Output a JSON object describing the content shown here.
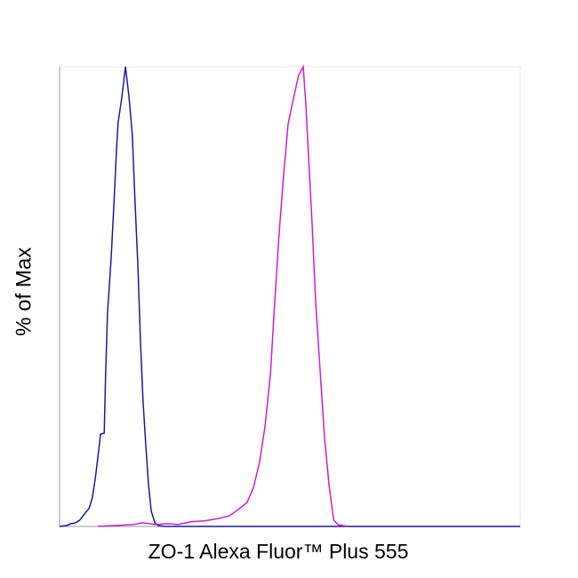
{
  "chart_data": {
    "type": "line",
    "x_label": "ZO-1 Alexa Fluor™ Plus 555",
    "y_label": "% of Max",
    "xlim": [
      0,
      100
    ],
    "ylim": [
      0,
      100
    ],
    "series": [
      {
        "color": "#1a1aa6",
        "x": [
          0,
          1.5,
          2.5,
          3.5,
          4.4,
          5.4,
          6.4,
          7.1,
          7.7,
          8.3,
          8.9,
          9.7,
          10.0,
          10.4,
          11.2,
          11.8,
          12.4,
          12.7,
          13.5,
          14.3,
          15.1,
          15.8,
          16.4,
          17.0,
          17.6,
          18.1,
          18.7,
          19.3,
          19.9,
          20.7,
          21.4,
          22.8,
          100
        ],
        "values": [
          0,
          0.2,
          0.6,
          0.8,
          1.4,
          2.7,
          3.9,
          6.2,
          10.1,
          14.9,
          20.1,
          20.3,
          33.3,
          46.4,
          58.4,
          70.0,
          82.6,
          87.8,
          93.2,
          100,
          93.2,
          85.1,
          70.0,
          56.5,
          39.1,
          27.5,
          17.8,
          9.1,
          3.3,
          0.8,
          0.2,
          0,
          0
        ]
      },
      {
        "color": "#d11ad1",
        "x": [
          8.3,
          16.0,
          18.0,
          20.8,
          23.7,
          25.7,
          28.6,
          31.5,
          34.4,
          36.9,
          38.8,
          40.7,
          42.1,
          43.4,
          44.6,
          45.8,
          46.7,
          47.7,
          48.6,
          49.6,
          50.8,
          51.9,
          52.9,
          53.5,
          54.1,
          54.8,
          55.6,
          56.6,
          57.5,
          58.5,
          59.5,
          60.4,
          62.4
        ],
        "values": [
          0,
          0.4,
          0.8,
          0.4,
          0.6,
          0.4,
          1.0,
          1.2,
          1.7,
          2.3,
          3.7,
          5.2,
          8.5,
          13.9,
          21.7,
          33.3,
          48.7,
          64.2,
          75.8,
          87.4,
          93.2,
          98.1,
          100,
          91.3,
          79.7,
          66.2,
          48.7,
          33.3,
          19.7,
          9.1,
          1.4,
          0.4,
          0
        ]
      }
    ]
  }
}
